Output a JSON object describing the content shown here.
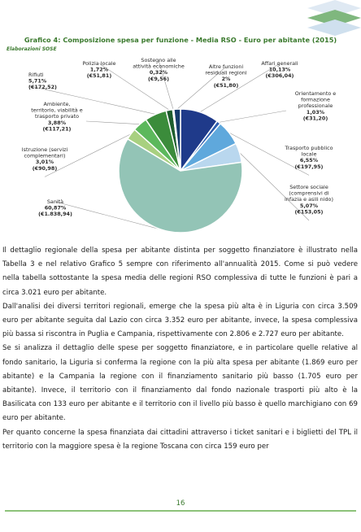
{
  "header": {
    "logo_icon": "stacked-chevron-logo-icon",
    "logo_colors": [
      "#7fb77e",
      "#dfe9f3"
    ]
  },
  "chart": {
    "title": "Grafico 4: Composizione spesa per funzione - Media RSO - Euro per abitante (2015)",
    "source": "Elaborazioni SOSE"
  },
  "chart_data": {
    "type": "pie",
    "title": "Grafico 4: Composizione spesa per funzione - Media RSO - Euro per abitante (2015)",
    "slices": [
      {
        "label": [
          "Affari generali"
        ],
        "percent": "10,13%",
        "value_text": "(€306,04)",
        "value": 306.04,
        "share": 10.13,
        "color": "#1f3a8a"
      },
      {
        "label": [
          "Orientamento e",
          "formazione",
          "professionale"
        ],
        "percent": "1,03%",
        "value_text": "(€31,20)",
        "value": 31.2,
        "share": 1.03,
        "color": "#2e5fb0"
      },
      {
        "label": [
          "Trasporto pubblico",
          "locale"
        ],
        "percent": "6,55%",
        "value_text": "(€197,95)",
        "value": 197.95,
        "share": 6.55,
        "color": "#5fa8dc"
      },
      {
        "label": [
          "Settore sociale",
          "(comprensivi di",
          "infazia e asili nido)"
        ],
        "percent": "5,07%",
        "value_text": "(€153,05)",
        "value": 153.05,
        "share": 5.07,
        "color": "#b9d7ee"
      },
      {
        "label": [
          "Sanità"
        ],
        "percent": "60,87%",
        "value_text": "(€1.838,94)",
        "value": 1838.94,
        "share": 60.87,
        "color": "#93c4b6"
      },
      {
        "label": [
          "Istruzione (servizi",
          "complementari)"
        ],
        "percent": "3,01%",
        "value_text": "(€90,98)",
        "value": 90.98,
        "share": 3.01,
        "color": "#a8d080"
      },
      {
        "label": [
          "Ambiente,",
          "territorio, viabilità e",
          "trasporto privato"
        ],
        "percent": "3,88%",
        "value_text": "(€117,21)",
        "value": 117.21,
        "share": 3.88,
        "color": "#5cb85c"
      },
      {
        "label": [
          "Rifiuti"
        ],
        "percent": "5,71%",
        "value_text": "(€172,52)",
        "value": 172.52,
        "share": 5.71,
        "color": "#3b8c3b"
      },
      {
        "label": [
          "Polizia locale"
        ],
        "percent": "1,72%",
        "value_text": "(€51,81)",
        "value": 51.81,
        "share": 1.72,
        "color": "#1e5e2e"
      },
      {
        "label": [
          "Sostegno alle",
          "attività economiche"
        ],
        "percent": "0,32%",
        "value_text": "(€9,56)",
        "value": 9.56,
        "share": 0.32,
        "color": "#0e3d22"
      },
      {
        "label": [
          "Altre funzioni",
          "residuali regioni"
        ],
        "percent": "2%",
        "value_text": "(€51,80)",
        "value": 51.8,
        "share": 1.71,
        "color": "#163b6b"
      }
    ]
  },
  "body": {
    "paragraphs": [
      "Il dettaglio regionale della spesa per abitante distinta per soggetto finanziatore è illustrato nella Tabella 3 e nel relativo Grafico 5 sempre con riferimento all'annualità 2015. Come si può vedere nella tabella sottostante la spesa media delle regioni RSO complessiva di tutte le funzioni è pari a circa 3.021 euro per abitante.",
      "Dall'analisi dei diversi territori regionali, emerge che la spesa più alta è in Liguria con circa 3.509 euro per abitante seguita dal Lazio con circa 3.352 euro per abitante, invece, la spesa complessiva più bassa si riscontra in Puglia e Campania, rispettivamente con 2.806 e 2.727 euro per abitante.",
      "Se si analizza il dettaglio delle spese per soggetto finanziatore, e in particolare quelle relative al fondo sanitario, la Liguria si conferma la regione con la più alta spesa per abitante (1.869 euro per abitante) e la Campania la regione con il finanziamento sanitario più basso (1.705 euro per abitante). Invece, il territorio con il finanziamento dal fondo nazionale trasporti più alto è la Basilicata con 133 euro per abitante e il territorio con il livello più basso è quello marchigiano con 69 euro per abitante.",
      "Per quanto concerne la spesa finanziata dai cittadini attraverso i ticket sanitari e i biglietti del TPL il territorio con la maggiore spesa è la regione Toscana con circa 159 euro per"
    ]
  },
  "footer": {
    "page_number": "16",
    "accent_color": "#8dc27a"
  }
}
